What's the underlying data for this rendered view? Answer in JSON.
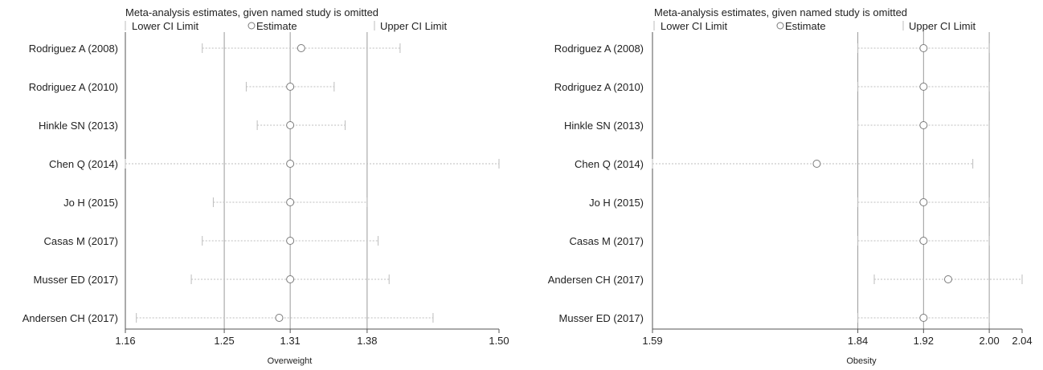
{
  "chart_data": [
    {
      "type": "scatter",
      "subtype": "forest-plot",
      "title": "Meta-analysis estimates, given named study is omitted",
      "legend": {
        "lower": "Lower CI Limit",
        "estimate": "Estimate",
        "upper": "Upper CI Limit"
      },
      "xlabel": "Overweight",
      "xlim": [
        1.16,
        1.5
      ],
      "xticks": [
        "1.16",
        "1.25",
        "1.31",
        "1.38",
        "1.50"
      ],
      "reference_lines": [
        1.25,
        1.31,
        1.38
      ],
      "studies": [
        {
          "name": "Rodriguez A  (2008)",
          "lower": 1.23,
          "estimate": 1.32,
          "upper": 1.41
        },
        {
          "name": "Rodriguez A (2010)",
          "lower": 1.27,
          "estimate": 1.31,
          "upper": 1.35
        },
        {
          "name": "Hinkle SN (2013)",
          "lower": 1.28,
          "estimate": 1.31,
          "upper": 1.36
        },
        {
          "name": "Chen Q (2014)",
          "lower": 1.16,
          "estimate": 1.31,
          "upper": 1.5
        },
        {
          "name": "Jo H  (2015)",
          "lower": 1.24,
          "estimate": 1.31,
          "upper": 1.38
        },
        {
          "name": "Casas M  (2017)",
          "lower": 1.23,
          "estimate": 1.31,
          "upper": 1.39
        },
        {
          "name": "Musser ED (2017)",
          "lower": 1.22,
          "estimate": 1.31,
          "upper": 1.4
        },
        {
          "name": "Andersen CH  (2017)",
          "lower": 1.17,
          "estimate": 1.3,
          "upper": 1.44
        }
      ]
    },
    {
      "type": "scatter",
      "subtype": "forest-plot",
      "title": "Meta-analysis estimates, given named study is omitted",
      "legend": {
        "lower": "Lower CI Limit",
        "estimate": "Estimate",
        "upper": "Upper CI Limit"
      },
      "xlabel": "Obesity",
      "xlim": [
        1.59,
        2.04
      ],
      "xticks": [
        "1.59",
        "1.84",
        "1.92",
        "2.00",
        "2.04"
      ],
      "reference_lines": [
        1.84,
        1.92,
        2.0
      ],
      "studies": [
        {
          "name": "Rodriguez A  (2008)",
          "lower": 1.84,
          "estimate": 1.92,
          "upper": 2.0
        },
        {
          "name": "Rodriguez A (2010)",
          "lower": 1.84,
          "estimate": 1.92,
          "upper": 2.0
        },
        {
          "name": "Hinkle SN (2013)",
          "lower": 1.84,
          "estimate": 1.92,
          "upper": 2.0
        },
        {
          "name": "Chen Q (2014)",
          "lower": 1.59,
          "estimate": 1.79,
          "upper": 1.98
        },
        {
          "name": "Jo H  (2015)",
          "lower": 1.84,
          "estimate": 1.92,
          "upper": 2.0
        },
        {
          "name": "Casas M  (2017)",
          "lower": 1.84,
          "estimate": 1.92,
          "upper": 2.0
        },
        {
          "name": "Andersen CH  (2017)",
          "lower": 1.86,
          "estimate": 1.95,
          "upper": 2.04
        },
        {
          "name": "Musser ED (2017)",
          "lower": 1.84,
          "estimate": 1.92,
          "upper": 2.0
        }
      ]
    }
  ],
  "colors": {
    "axis": "#555555",
    "ref_line": "#9a9a9a",
    "ci_line": "#bdbdbd",
    "marker": "#7a7a7a"
  }
}
